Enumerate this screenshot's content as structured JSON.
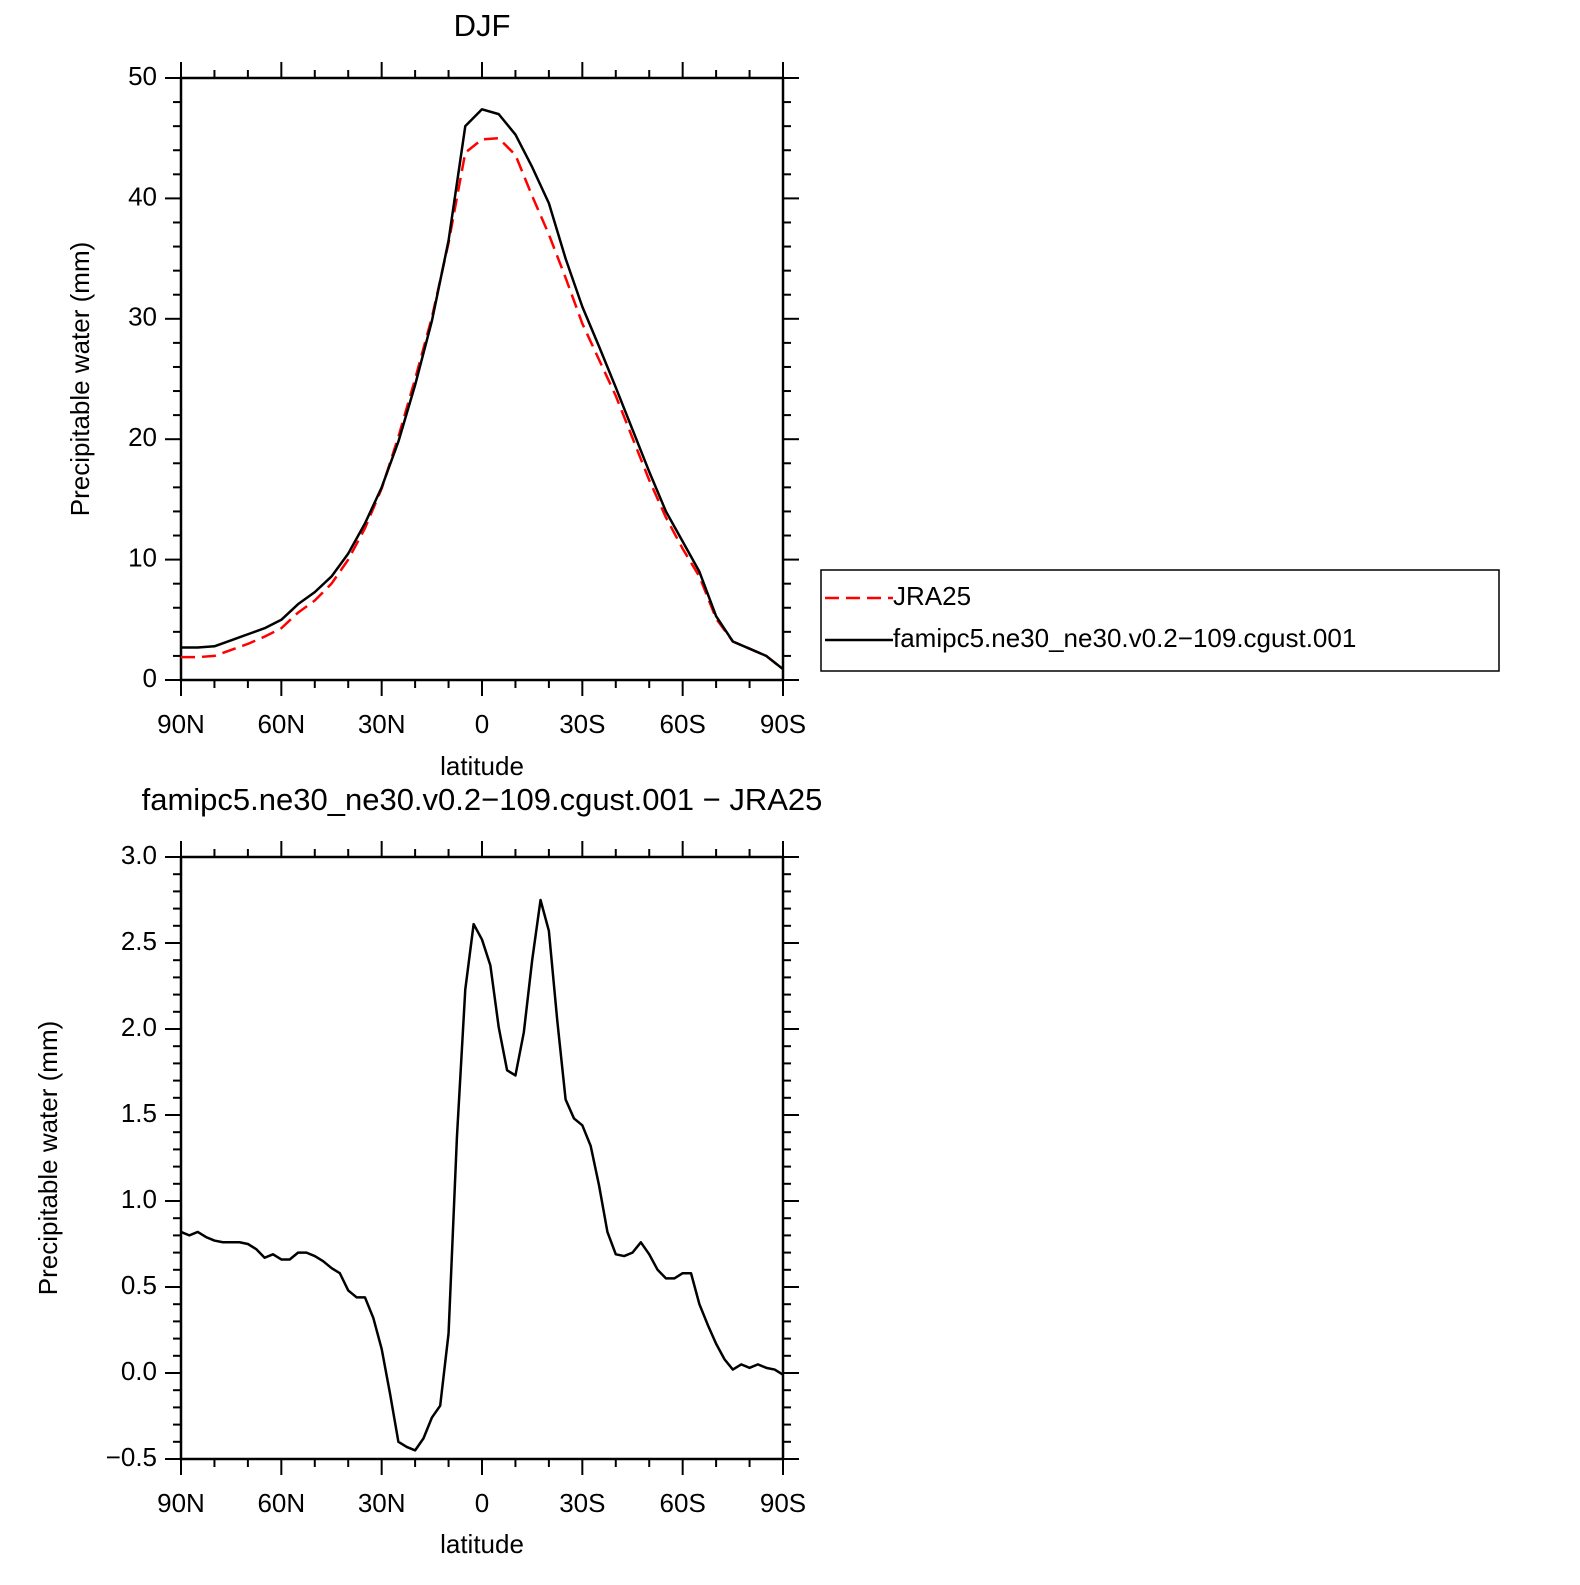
{
  "chart_data": [
    {
      "type": "line",
      "title": "DJF",
      "xlabel": "latitude",
      "ylabel": "Precipitable water (mm)",
      "x": [
        90,
        85,
        80,
        75,
        70,
        65,
        60,
        55,
        50,
        45,
        40,
        35,
        30,
        25,
        20,
        15,
        10,
        5,
        0,
        -5,
        -10,
        -15,
        -20,
        -25,
        -30,
        -35,
        -40,
        -45,
        -50,
        -55,
        -60,
        -65,
        -70,
        -75,
        -80,
        -85,
        -90
      ],
      "series": [
        {
          "name": "JRA25",
          "color": "#ff0000",
          "dashed": true,
          "values": [
            1.9,
            1.9,
            2.0,
            2.5,
            3.0,
            3.6,
            4.3,
            5.6,
            6.6,
            8.0,
            10.0,
            12.6,
            15.9,
            20.2,
            25.0,
            30.1,
            36.3,
            43.8,
            44.9,
            45.0,
            43.6,
            40.2,
            37.0,
            33.4,
            29.6,
            26.6,
            23.6,
            20.1,
            16.6,
            13.5,
            10.9,
            8.6,
            5.1,
            3.2,
            2.6,
            2.0,
            0.9
          ]
        },
        {
          "name": "famipc5.ne30_ne30.v0.2−109.cgust.001",
          "color": "#000000",
          "dashed": false,
          "values": [
            2.7,
            2.7,
            2.8,
            3.3,
            3.8,
            4.3,
            5.0,
            6.3,
            7.3,
            8.6,
            10.5,
            13.0,
            16.0,
            19.8,
            24.5,
            29.8,
            36.5,
            46.0,
            47.4,
            47.0,
            45.3,
            42.6,
            39.6,
            35.0,
            31.0,
            27.7,
            24.3,
            20.8,
            17.3,
            14.0,
            11.5,
            9.0,
            5.3,
            3.2,
            2.6,
            2.0,
            0.9
          ]
        }
      ],
      "xlim": [
        90,
        -90
      ],
      "xticks": [
        {
          "value": 90,
          "label": "90N"
        },
        {
          "value": 60,
          "label": "60N"
        },
        {
          "value": 30,
          "label": "30N"
        },
        0,
        {
          "value": -30,
          "label": "30S"
        },
        {
          "value": -60,
          "label": "60S"
        },
        {
          "value": -90,
          "label": "90S"
        }
      ],
      "xminorticks": [
        80,
        70,
        50,
        40,
        20,
        10,
        -10,
        -20,
        -40,
        -50,
        -70,
        -80
      ],
      "ylim": [
        0,
        50
      ],
      "yticks": [
        0,
        10,
        20,
        30,
        40,
        50
      ],
      "yminorticks": [
        2,
        4,
        6,
        8,
        12,
        14,
        16,
        18,
        22,
        24,
        26,
        28,
        32,
        34,
        36,
        38,
        42,
        44,
        46,
        48
      ],
      "legend": "outside-right"
    },
    {
      "type": "line",
      "title": "famipc5.ne30_ne30.v0.2−109.cgust.001 − JRA25",
      "xlabel": "latitude",
      "ylabel": "Precipitable water (mm)",
      "x": [
        90,
        87.5,
        85,
        82.5,
        80,
        77.5,
        75,
        72.5,
        70,
        67.5,
        65,
        62.5,
        60,
        57.5,
        55,
        52.5,
        50,
        47.5,
        45,
        42.5,
        40,
        37.5,
        35,
        32.5,
        30,
        27.5,
        25,
        22.5,
        20,
        17.5,
        15,
        12.5,
        10,
        7.5,
        5,
        2.5,
        0,
        -2.5,
        -5,
        -7.5,
        -10,
        -12.5,
        -15,
        -17.5,
        -20,
        -22.5,
        -25,
        -27.5,
        -30,
        -32.5,
        -35,
        -37.5,
        -40,
        -42.5,
        -45,
        -47.5,
        -50,
        -52.5,
        -55,
        -57.5,
        -60,
        -62.5,
        -65,
        -67.5,
        -70,
        -72.5,
        -75,
        -77.5,
        -80,
        -82.5,
        -85,
        -87.5,
        -90
      ],
      "series": [
        {
          "color": "#000000",
          "dashed": false,
          "values": [
            0.82,
            0.8,
            0.82,
            0.79,
            0.77,
            0.76,
            0.76,
            0.76,
            0.75,
            0.72,
            0.67,
            0.69,
            0.66,
            0.66,
            0.7,
            0.7,
            0.68,
            0.65,
            0.61,
            0.58,
            0.48,
            0.44,
            0.44,
            0.32,
            0.14,
            -0.12,
            -0.4,
            -0.43,
            -0.45,
            -0.38,
            -0.26,
            -0.19,
            0.23,
            1.37,
            2.23,
            2.61,
            2.52,
            2.37,
            2.01,
            1.76,
            1.73,
            1.98,
            2.4,
            2.75,
            2.57,
            2.05,
            1.59,
            1.48,
            1.44,
            1.32,
            1.09,
            0.82,
            0.69,
            0.68,
            0.7,
            0.76,
            0.69,
            0.6,
            0.55,
            0.55,
            0.58,
            0.58,
            0.4,
            0.28,
            0.17,
            0.08,
            0.02,
            0.05,
            0.03,
            0.05,
            0.03,
            0.02,
            -0.01
          ]
        }
      ],
      "xlim": [
        90,
        -90
      ],
      "xticks": [
        {
          "value": 90,
          "label": "90N"
        },
        {
          "value": 60,
          "label": "60N"
        },
        {
          "value": 30,
          "label": "30N"
        },
        0,
        {
          "value": -30,
          "label": "30S"
        },
        {
          "value": -60,
          "label": "60S"
        },
        {
          "value": -90,
          "label": "90S"
        }
      ],
      "xminorticks": [
        80,
        70,
        50,
        40,
        20,
        10,
        -10,
        -20,
        -40,
        -50,
        -70,
        -80
      ],
      "ylim": [
        -0.5,
        3.0
      ],
      "yticks": [
        {
          "value": -0.5,
          "label": "−0.5"
        },
        {
          "value": 0,
          "label": "0.0"
        },
        0.5,
        {
          "value": 1,
          "label": "1.0"
        },
        1.5,
        {
          "value": 2,
          "label": "2.0"
        },
        2.5,
        {
          "value": 3,
          "label": "3.0"
        }
      ],
      "yminorticks": [
        -0.4,
        -0.3,
        -0.2,
        -0.1,
        0.1,
        0.2,
        0.3,
        0.4,
        0.6,
        0.7,
        0.8,
        0.9,
        1.1,
        1.2,
        1.3,
        1.4,
        1.6,
        1.7,
        1.8,
        1.9,
        2.1,
        2.2,
        2.3,
        2.4,
        2.6,
        2.7,
        2.8,
        2.9
      ]
    }
  ]
}
